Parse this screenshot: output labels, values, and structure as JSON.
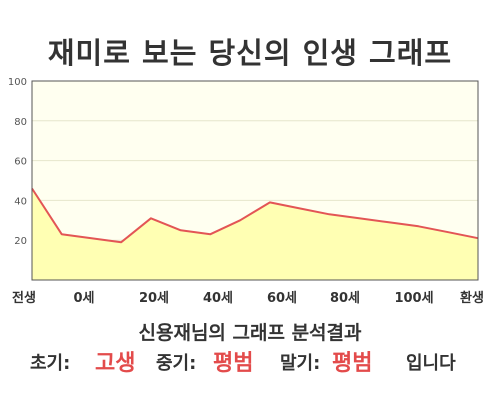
{
  "title": "재미로 보는 당신의 인생 그래프",
  "chart_data": {
    "type": "area",
    "x": [
      0,
      1,
      2,
      3,
      4,
      5,
      6,
      7,
      8,
      9,
      10,
      11,
      12,
      13,
      14,
      15
    ],
    "x_tick_labels": [
      "전생",
      "0세",
      "20세",
      "40세",
      "60세",
      "80세",
      "100세",
      "환생"
    ],
    "series": [
      {
        "values": [
          46,
          23,
          21,
          19,
          31,
          25,
          23,
          30,
          39,
          36,
          33,
          31,
          29,
          27,
          24,
          21
        ]
      }
    ],
    "ylim": [
      0,
      100
    ],
    "y_ticks": [
      20,
      40,
      60,
      80,
      100
    ],
    "grid": "horizontal",
    "colors": {
      "line": "#e35555",
      "fill": "#ffffb3",
      "plot_bg": "#fffff0"
    }
  },
  "caption": "신용재님의 그래프 분석결과",
  "result": {
    "early_label": "초기:",
    "early_value": "고생",
    "middle_label": "중기:",
    "middle_value": "평범",
    "late_label": "말기:",
    "late_value": "평범",
    "suffix": "입니다"
  }
}
